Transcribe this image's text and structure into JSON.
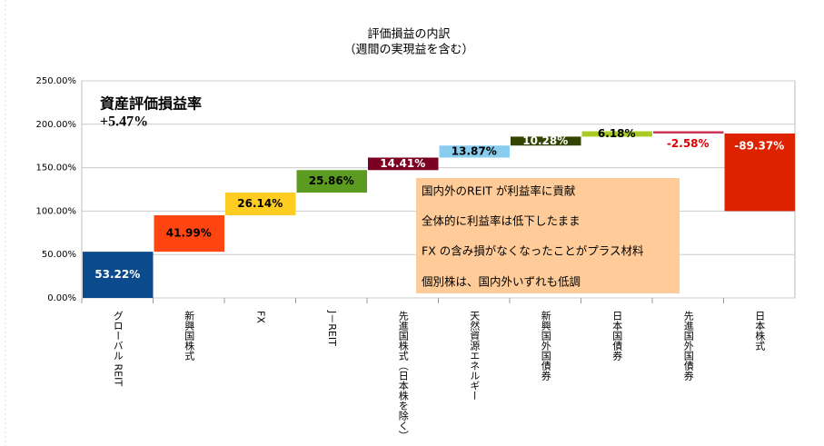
{
  "chart_data": {
    "type": "waterfall",
    "title": "評価損益の内訳",
    "subtitle": "（週間の実現益を含む）",
    "annotation": {
      "label": "資産評価損益率",
      "value": "+5.47%"
    },
    "notes": [
      "国内外のREIT が利益率に貢献",
      "全体的に利益率は低下したまま",
      "FX の含み損がなくなったことがプラス材料",
      "個別株は、国内外いずれも低調"
    ],
    "categories": [
      "グローバル REIT",
      "新興国株式",
      "FX",
      "J－REIT",
      "先進国株式（日本株を除く）",
      "天然資源エネルギー",
      "新興国外国債券",
      "日本国債券",
      "先進国外国債券",
      "日本株式"
    ],
    "values": [
      53.22,
      41.99,
      26.14,
      25.86,
      14.41,
      13.87,
      10.28,
      6.18,
      -2.58,
      -89.37
    ],
    "value_labels": [
      "53.22%",
      "41.99%",
      "26.14%",
      "25.86%",
      "14.41%",
      "13.87%",
      "10.28%",
      "6.18%",
      "-2.58%",
      "-89.37%"
    ],
    "colors": [
      "#0b4a8c",
      "#ff4512",
      "#ffcc22",
      "#5b9b1f",
      "#7b0022",
      "#88ccee",
      "#334400",
      "#aacc22",
      "#cc3355",
      "#dd2200"
    ],
    "label_colors": [
      "#ffffff",
      "#000000",
      "#000000",
      "#000000",
      "#ffffff",
      "#000000",
      "#ffffff",
      "#000000",
      "#dd0000",
      "#ffffff"
    ],
    "ylim": [
      0,
      250
    ],
    "yticks": [
      {
        "value": 0,
        "label": "0.00%"
      },
      {
        "value": 50,
        "label": "50.00%"
      },
      {
        "value": 100,
        "label": "100.00%"
      },
      {
        "value": 150,
        "label": "150.00%"
      },
      {
        "value": 200,
        "label": "200.00%"
      },
      {
        "value": 250,
        "label": "250.00%"
      }
    ],
    "grid": true
  }
}
